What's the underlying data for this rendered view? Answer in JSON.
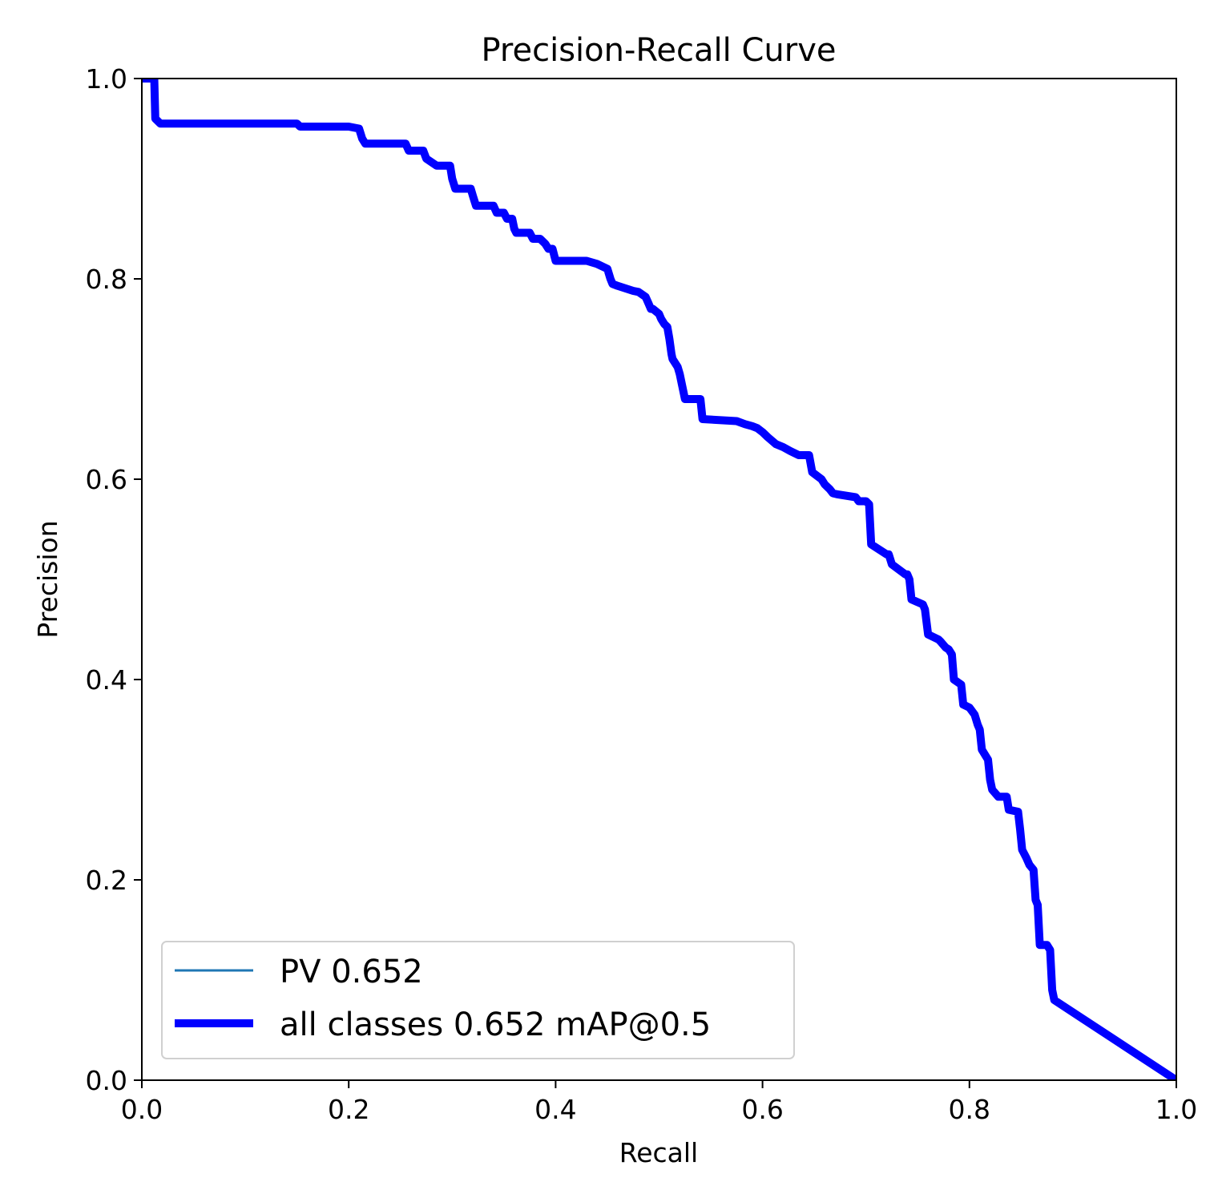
{
  "chart_data": {
    "type": "line",
    "title": "Precision-Recall Curve",
    "xlabel": "Recall",
    "ylabel": "Precision",
    "xlim": [
      0,
      1
    ],
    "ylim": [
      0,
      1
    ],
    "xticks": [
      "0.0",
      "0.2",
      "0.4",
      "0.6",
      "0.8",
      "1.0"
    ],
    "yticks": [
      "0.0",
      "0.2",
      "0.4",
      "0.6",
      "0.8",
      "1.0"
    ],
    "grid": false,
    "legend_position": "bottom-left",
    "series": [
      {
        "name": "PV 0.652",
        "color": "#1f77b4",
        "x": [],
        "y": []
      },
      {
        "name": "all classes 0.652 mAP@0.5",
        "color": "#0000ff",
        "x": [
          0.0,
          0.012,
          0.013,
          0.018,
          0.15,
          0.153,
          0.2,
          0.21,
          0.213,
          0.216,
          0.228,
          0.255,
          0.258,
          0.272,
          0.275,
          0.285,
          0.298,
          0.3,
          0.303,
          0.318,
          0.32,
          0.323,
          0.34,
          0.343,
          0.35,
          0.353,
          0.358,
          0.36,
          0.362,
          0.375,
          0.378,
          0.385,
          0.39,
          0.393,
          0.397,
          0.4,
          0.43,
          0.44,
          0.45,
          0.453,
          0.455,
          0.46,
          0.475,
          0.48,
          0.487,
          0.49,
          0.492,
          0.494,
          0.5,
          0.502,
          0.505,
          0.508,
          0.51,
          0.512,
          0.513,
          0.518,
          0.52,
          0.522,
          0.525,
          0.54,
          0.542,
          0.575,
          0.583,
          0.59,
          0.595,
          0.6,
          0.605,
          0.613,
          0.62,
          0.627,
          0.635,
          0.645,
          0.648,
          0.657,
          0.66,
          0.665,
          0.668,
          0.672,
          0.69,
          0.693,
          0.7,
          0.703,
          0.705,
          0.72,
          0.722,
          0.725,
          0.738,
          0.74,
          0.742,
          0.744,
          0.755,
          0.757,
          0.76,
          0.77,
          0.772,
          0.777,
          0.78,
          0.783,
          0.785,
          0.792,
          0.794,
          0.8,
          0.805,
          0.808,
          0.81,
          0.812,
          0.818,
          0.82,
          0.822,
          0.828,
          0.836,
          0.838,
          0.847,
          0.849,
          0.851,
          0.855,
          0.858,
          0.862,
          0.864,
          0.866,
          0.868,
          0.875,
          0.878,
          0.88,
          0.882,
          1.0
        ],
        "y": [
          1.0,
          1.0,
          0.96,
          0.955,
          0.955,
          0.952,
          0.952,
          0.95,
          0.94,
          0.935,
          0.935,
          0.935,
          0.928,
          0.928,
          0.92,
          0.913,
          0.913,
          0.9,
          0.89,
          0.89,
          0.883,
          0.873,
          0.873,
          0.866,
          0.866,
          0.86,
          0.86,
          0.85,
          0.846,
          0.846,
          0.84,
          0.84,
          0.835,
          0.83,
          0.83,
          0.818,
          0.818,
          0.815,
          0.81,
          0.8,
          0.795,
          0.793,
          0.788,
          0.787,
          0.782,
          0.775,
          0.77,
          0.77,
          0.765,
          0.76,
          0.755,
          0.752,
          0.74,
          0.725,
          0.72,
          0.712,
          0.705,
          0.695,
          0.68,
          0.68,
          0.66,
          0.658,
          0.655,
          0.653,
          0.651,
          0.647,
          0.642,
          0.635,
          0.632,
          0.628,
          0.624,
          0.624,
          0.607,
          0.6,
          0.595,
          0.59,
          0.586,
          0.585,
          0.582,
          0.578,
          0.578,
          0.575,
          0.535,
          0.525,
          0.525,
          0.515,
          0.505,
          0.505,
          0.5,
          0.48,
          0.475,
          0.47,
          0.445,
          0.44,
          0.438,
          0.432,
          0.43,
          0.425,
          0.4,
          0.395,
          0.375,
          0.372,
          0.365,
          0.355,
          0.35,
          0.33,
          0.32,
          0.3,
          0.29,
          0.283,
          0.283,
          0.27,
          0.268,
          0.25,
          0.23,
          0.222,
          0.215,
          0.21,
          0.18,
          0.175,
          0.135,
          0.135,
          0.13,
          0.09,
          0.08,
          0.0
        ]
      }
    ]
  }
}
